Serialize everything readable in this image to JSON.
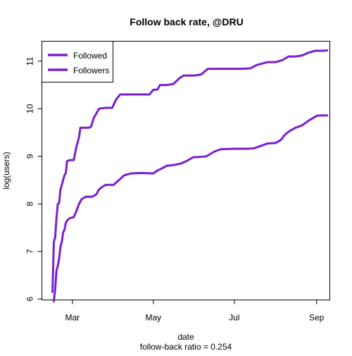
{
  "chart_data": {
    "type": "line",
    "title": "Follow back rate, @DRU",
    "xlabel": "date",
    "subtitle": "follow-back ratio = 0.254",
    "ylabel": "log(users)",
    "x_ticks": [
      {
        "label": "Mar",
        "date": "2013-03-01"
      },
      {
        "label": "May",
        "date": "2013-05-01"
      },
      {
        "label": "Jul",
        "date": "2013-07-01"
      },
      {
        "label": "Sep",
        "date": "2013-09-01"
      }
    ],
    "xlim": [
      "2013-02-06",
      "2013-09-11"
    ],
    "y_ticks": [
      6,
      7,
      8,
      9,
      10,
      11
    ],
    "ylim": [
      5.98,
      11.42
    ],
    "grid": false,
    "legend_position": "top-left",
    "series": [
      {
        "name": "Followed",
        "color": "#7a1ed2",
        "points": [
          [
            "2013-02-14",
            6.15
          ],
          [
            "2013-02-15",
            7.2
          ],
          [
            "2013-02-16",
            7.3
          ],
          [
            "2013-02-17",
            7.7
          ],
          [
            "2013-02-18",
            8.0
          ],
          [
            "2013-02-19",
            8.02
          ],
          [
            "2013-02-20",
            8.3
          ],
          [
            "2013-02-21",
            8.4
          ],
          [
            "2013-02-23",
            8.6
          ],
          [
            "2013-02-24",
            8.65
          ],
          [
            "2013-02-25",
            8.9
          ],
          [
            "2013-02-27",
            8.92
          ],
          [
            "2013-03-02",
            8.92
          ],
          [
            "2013-03-04",
            9.2
          ],
          [
            "2013-03-06",
            9.4
          ],
          [
            "2013-03-07",
            9.6
          ],
          [
            "2013-03-10",
            9.6
          ],
          [
            "2013-03-13",
            9.6
          ],
          [
            "2013-03-15",
            9.62
          ],
          [
            "2013-03-17",
            9.8
          ],
          [
            "2013-03-19",
            9.9
          ],
          [
            "2013-03-21",
            10.0
          ],
          [
            "2013-03-26",
            10.02
          ],
          [
            "2013-03-31",
            10.02
          ],
          [
            "2013-04-03",
            10.2
          ],
          [
            "2013-04-06",
            10.3
          ],
          [
            "2013-04-15",
            10.3
          ],
          [
            "2013-04-26",
            10.3
          ],
          [
            "2013-04-28",
            10.3
          ],
          [
            "2013-05-01",
            10.4
          ],
          [
            "2013-05-04",
            10.4
          ],
          [
            "2013-05-06",
            10.5
          ],
          [
            "2013-05-11",
            10.5
          ],
          [
            "2013-05-16",
            10.52
          ],
          [
            "2013-05-21",
            10.65
          ],
          [
            "2013-05-24",
            10.7
          ],
          [
            "2013-06-01",
            10.7
          ],
          [
            "2013-06-06",
            10.72
          ],
          [
            "2013-06-11",
            10.84
          ],
          [
            "2013-06-21",
            10.84
          ],
          [
            "2013-07-06",
            10.84
          ],
          [
            "2013-07-13",
            10.85
          ],
          [
            "2013-07-18",
            10.92
          ],
          [
            "2013-07-26",
            10.98
          ],
          [
            "2013-08-01",
            10.98
          ],
          [
            "2013-08-06",
            11.02
          ],
          [
            "2013-08-11",
            11.1
          ],
          [
            "2013-08-16",
            11.1
          ],
          [
            "2013-08-21",
            11.12
          ],
          [
            "2013-08-26",
            11.18
          ],
          [
            "2013-08-31",
            11.22
          ],
          [
            "2013-09-07",
            11.22
          ],
          [
            "2013-09-09",
            11.23
          ]
        ]
      },
      {
        "name": "Followers",
        "color": "#7a1ed2",
        "points": [
          [
            "2013-02-15",
            5.95
          ],
          [
            "2013-02-16",
            6.2
          ],
          [
            "2013-02-17",
            6.6
          ],
          [
            "2013-02-18",
            6.7
          ],
          [
            "2013-02-19",
            6.85
          ],
          [
            "2013-02-20",
            7.1
          ],
          [
            "2013-02-21",
            7.2
          ],
          [
            "2013-02-22",
            7.4
          ],
          [
            "2013-02-23",
            7.45
          ],
          [
            "2013-02-24",
            7.6
          ],
          [
            "2013-02-25",
            7.65
          ],
          [
            "2013-02-27",
            7.7
          ],
          [
            "2013-03-02",
            7.72
          ],
          [
            "2013-03-04",
            7.85
          ],
          [
            "2013-03-06",
            8.0
          ],
          [
            "2013-03-08",
            8.1
          ],
          [
            "2013-03-11",
            8.15
          ],
          [
            "2013-03-16",
            8.15
          ],
          [
            "2013-03-19",
            8.2
          ],
          [
            "2013-03-21",
            8.3
          ],
          [
            "2013-03-23",
            8.35
          ],
          [
            "2013-03-26",
            8.4
          ],
          [
            "2013-04-01",
            8.4
          ],
          [
            "2013-04-05",
            8.5
          ],
          [
            "2013-04-09",
            8.6
          ],
          [
            "2013-04-14",
            8.64
          ],
          [
            "2013-04-22",
            8.65
          ],
          [
            "2013-05-01",
            8.64
          ],
          [
            "2013-05-04",
            8.7
          ],
          [
            "2013-05-07",
            8.74
          ],
          [
            "2013-05-11",
            8.8
          ],
          [
            "2013-05-17",
            8.82
          ],
          [
            "2013-05-22",
            8.85
          ],
          [
            "2013-05-26",
            8.9
          ],
          [
            "2013-05-31",
            8.98
          ],
          [
            "2013-06-06",
            8.99
          ],
          [
            "2013-06-10",
            9.0
          ],
          [
            "2013-06-16",
            9.1
          ],
          [
            "2013-06-21",
            9.15
          ],
          [
            "2013-07-01",
            9.16
          ],
          [
            "2013-07-11",
            9.16
          ],
          [
            "2013-07-16",
            9.17
          ],
          [
            "2013-07-21",
            9.22
          ],
          [
            "2013-07-26",
            9.27
          ],
          [
            "2013-08-01",
            9.28
          ],
          [
            "2013-08-05",
            9.34
          ],
          [
            "2013-08-08",
            9.45
          ],
          [
            "2013-08-11",
            9.52
          ],
          [
            "2013-08-16",
            9.6
          ],
          [
            "2013-08-21",
            9.65
          ],
          [
            "2013-08-26",
            9.75
          ],
          [
            "2013-08-29",
            9.8
          ],
          [
            "2013-09-01",
            9.85
          ],
          [
            "2013-09-04",
            9.86
          ],
          [
            "2013-09-09",
            9.86
          ]
        ]
      }
    ]
  }
}
